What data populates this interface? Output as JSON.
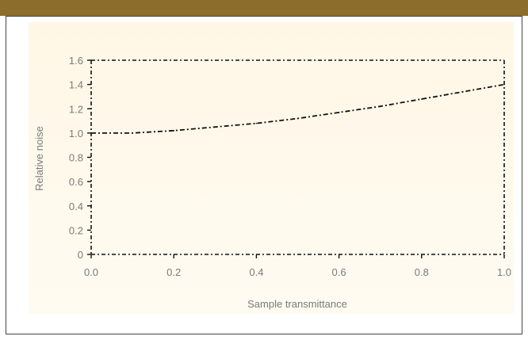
{
  "colors": {
    "topbar": "#8c6d2c",
    "panel": "#fff7e6",
    "ink": "#111111",
    "label": "#7a7a7a"
  },
  "chart_data": {
    "type": "line",
    "title": "",
    "xlabel": "Sample transmittance",
    "ylabel": "Relative noise",
    "xlim": [
      0.0,
      1.0
    ],
    "ylim": [
      0,
      1.6
    ],
    "x_ticks": [
      "0.0",
      "0.2",
      "0.4",
      "0.6",
      "0.8",
      "1.0"
    ],
    "y_ticks": [
      "0",
      "0.2",
      "0.4",
      "0.6",
      "0.8",
      "1.0",
      "1.2",
      "1.4",
      "1.6"
    ],
    "grid": false,
    "series": [
      {
        "x": [
          0.0,
          0.1,
          0.2,
          0.3,
          0.4,
          0.5,
          0.6,
          0.7,
          0.8,
          0.9,
          1.0
        ],
        "values": [
          1.0,
          1.0,
          1.02,
          1.05,
          1.08,
          1.12,
          1.17,
          1.22,
          1.28,
          1.34,
          1.4
        ]
      }
    ]
  }
}
